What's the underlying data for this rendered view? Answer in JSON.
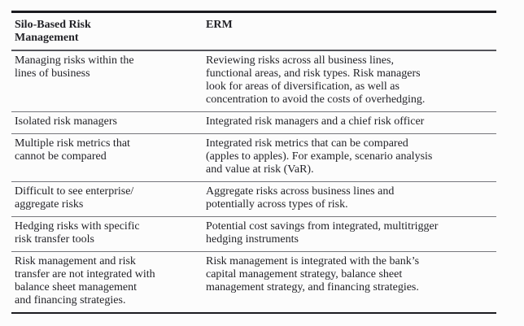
{
  "table": {
    "headers": {
      "silo": "Silo-Based Risk\nManagement",
      "erm": "ERM"
    },
    "rows": [
      {
        "silo": "Managing risks within the\nlines of business",
        "erm": "Reviewing risks across all business lines,\nfunctional areas, and risk types. Risk managers\nlook for areas of diversification, as well as\nconcentration to avoid the costs of overhedging."
      },
      {
        "silo": "Isolated risk managers",
        "erm": "Integrated risk managers and a chief risk officer"
      },
      {
        "silo": "Multiple risk metrics that\ncannot be compared",
        "erm": "Integrated risk metrics that can be compared\n(apples to apples). For example, scenario analysis\nand value at risk (VaR)."
      },
      {
        "silo": "Difficult to see enterprise/\naggregate risks",
        "erm": "Aggregate risks across business lines and\npotentially across types of risk."
      },
      {
        "silo": "Hedging risks with specific\nrisk transfer tools",
        "erm": "Potential cost savings from integrated, multitrigger\nhedging instruments"
      },
      {
        "silo": "Risk management and risk\ntransfer are not integrated with\nbalance sheet management\nand financing strategies.",
        "erm": "Risk management is integrated with the bank’s\ncapital management strategy, balance sheet\nmanagement strategy, and financing strategies."
      }
    ]
  },
  "colors": {
    "background": "#fcfcfc",
    "text": "#232328",
    "border_heavy": "#1b1b20",
    "border_header_rule": "#54545a",
    "border_row_rule": "#76767c"
  }
}
